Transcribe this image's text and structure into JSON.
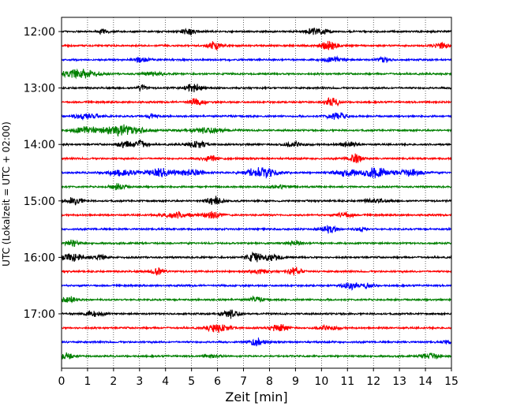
{
  "chart_data": {
    "type": "line",
    "title": "",
    "xlabel": "Zeit  [min]",
    "ylabel": "UTC (Lokalzeit = UTC + 02:00)",
    "xlim": [
      0,
      15
    ],
    "x_ticks": [
      0,
      1,
      2,
      3,
      4,
      5,
      6,
      7,
      8,
      9,
      10,
      11,
      12,
      13,
      14,
      15
    ],
    "y_tick_labels": [
      "12:00",
      "13:00",
      "14:00",
      "15:00",
      "16:00",
      "17:00"
    ],
    "trace_minutes": 15,
    "grid": "vertical dotted at each minute",
    "colors": [
      "#000000",
      "#ff0000",
      "#0000ff",
      "#008000"
    ],
    "traces": [
      {
        "start": "12:00",
        "color": "#000000",
        "events": [
          {
            "t": 1.6,
            "a": 0.55,
            "w": 0.12
          },
          {
            "t": 4.9,
            "a": 0.6,
            "w": 0.2
          },
          {
            "t": 9.8,
            "a": 0.65,
            "w": 0.3
          }
        ]
      },
      {
        "start": "12:15",
        "color": "#ff0000",
        "events": [
          {
            "t": 5.9,
            "a": 0.85,
            "w": 0.18
          },
          {
            "t": 10.3,
            "a": 0.8,
            "w": 0.25
          },
          {
            "t": 14.6,
            "a": 0.55,
            "w": 0.2
          }
        ]
      },
      {
        "start": "12:30",
        "color": "#0000ff",
        "events": [
          {
            "t": 3.1,
            "a": 0.45,
            "w": 0.25
          },
          {
            "t": 10.5,
            "a": 0.45,
            "w": 0.3
          },
          {
            "t": 12.4,
            "a": 0.65,
            "w": 0.15
          }
        ]
      },
      {
        "start": "12:45",
        "color": "#008000",
        "events": [
          {
            "t": 0.7,
            "a": 0.95,
            "w": 0.45
          },
          {
            "t": 3.5,
            "a": 0.3,
            "w": 0.3
          }
        ]
      },
      {
        "start": "13:00",
        "color": "#000000",
        "events": [
          {
            "t": 3.1,
            "a": 0.8,
            "w": 0.12
          },
          {
            "t": 5.1,
            "a": 0.75,
            "w": 0.25
          }
        ]
      },
      {
        "start": "13:15",
        "color": "#ff0000",
        "events": [
          {
            "t": 5.2,
            "a": 0.6,
            "w": 0.22
          },
          {
            "t": 10.4,
            "a": 0.7,
            "w": 0.2
          }
        ]
      },
      {
        "start": "13:30",
        "color": "#0000ff",
        "events": [
          {
            "t": 1.0,
            "a": 0.55,
            "w": 0.4
          },
          {
            "t": 3.5,
            "a": 0.4,
            "w": 0.15
          },
          {
            "t": 10.6,
            "a": 0.7,
            "w": 0.25
          }
        ]
      },
      {
        "start": "13:45",
        "color": "#008000",
        "events": [
          {
            "t": 1.0,
            "a": 0.6,
            "w": 0.4
          },
          {
            "t": 2.4,
            "a": 0.95,
            "w": 0.55
          },
          {
            "t": 5.6,
            "a": 0.5,
            "w": 0.5
          }
        ]
      },
      {
        "start": "14:00",
        "color": "#000000",
        "events": [
          {
            "t": 2.4,
            "a": 0.55,
            "w": 0.2
          },
          {
            "t": 3.0,
            "a": 0.75,
            "w": 0.2
          },
          {
            "t": 5.2,
            "a": 0.6,
            "w": 0.25
          },
          {
            "t": 8.9,
            "a": 0.45,
            "w": 0.3
          },
          {
            "t": 11.0,
            "a": 0.5,
            "w": 0.25
          }
        ]
      },
      {
        "start": "14:15",
        "color": "#ff0000",
        "events": [
          {
            "t": 5.7,
            "a": 0.55,
            "w": 0.2
          },
          {
            "t": 11.3,
            "a": 0.8,
            "w": 0.2
          }
        ]
      },
      {
        "start": "14:30",
        "color": "#0000ff",
        "events": [
          {
            "t": 2.3,
            "a": 0.5,
            "w": 0.4
          },
          {
            "t": 3.8,
            "a": 0.75,
            "w": 0.35
          },
          {
            "t": 5.0,
            "a": 0.55,
            "w": 0.4
          },
          {
            "t": 7.7,
            "a": 0.9,
            "w": 0.45
          },
          {
            "t": 11.0,
            "a": 0.7,
            "w": 0.35
          },
          {
            "t": 12.1,
            "a": 0.95,
            "w": 0.3
          },
          {
            "t": 13.4,
            "a": 0.6,
            "w": 0.4
          }
        ]
      },
      {
        "start": "14:45",
        "color": "#008000",
        "events": [
          {
            "t": 2.2,
            "a": 0.65,
            "w": 0.2
          },
          {
            "t": 8.4,
            "a": 0.3,
            "w": 0.3
          }
        ]
      },
      {
        "start": "15:00",
        "color": "#000000",
        "events": [
          {
            "t": 0.5,
            "a": 0.7,
            "w": 0.2
          },
          {
            "t": 5.9,
            "a": 0.85,
            "w": 0.2
          },
          {
            "t": 12.1,
            "a": 0.3,
            "w": 0.3
          }
        ]
      },
      {
        "start": "15:15",
        "color": "#ff0000",
        "events": [
          {
            "t": 4.4,
            "a": 0.55,
            "w": 0.4
          },
          {
            "t": 5.8,
            "a": 0.6,
            "w": 0.25
          },
          {
            "t": 10.9,
            "a": 0.55,
            "w": 0.2
          }
        ]
      },
      {
        "start": "15:30",
        "color": "#0000ff",
        "events": [
          {
            "t": 10.3,
            "a": 0.75,
            "w": 0.2
          },
          {
            "t": 11.5,
            "a": 0.35,
            "w": 0.15
          }
        ]
      },
      {
        "start": "15:45",
        "color": "#008000",
        "events": [
          {
            "t": 0.4,
            "a": 0.5,
            "w": 0.2
          },
          {
            "t": 9.0,
            "a": 0.4,
            "w": 0.2
          }
        ]
      },
      {
        "start": "16:00",
        "color": "#000000",
        "events": [
          {
            "t": 0.4,
            "a": 0.75,
            "w": 0.3
          },
          {
            "t": 1.5,
            "a": 0.45,
            "w": 0.2
          },
          {
            "t": 7.4,
            "a": 0.8,
            "w": 0.2
          },
          {
            "t": 8.1,
            "a": 0.6,
            "w": 0.25
          }
        ]
      },
      {
        "start": "16:15",
        "color": "#ff0000",
        "events": [
          {
            "t": 3.7,
            "a": 0.8,
            "w": 0.2
          },
          {
            "t": 7.6,
            "a": 0.45,
            "w": 0.25
          },
          {
            "t": 9.0,
            "a": 0.7,
            "w": 0.2
          }
        ]
      },
      {
        "start": "16:30",
        "color": "#0000ff",
        "events": [
          {
            "t": 11.1,
            "a": 0.65,
            "w": 0.2
          },
          {
            "t": 11.8,
            "a": 0.45,
            "w": 0.15
          }
        ]
      },
      {
        "start": "16:45",
        "color": "#008000",
        "events": [
          {
            "t": 0.3,
            "a": 0.6,
            "w": 0.2
          },
          {
            "t": 7.5,
            "a": 0.45,
            "w": 0.2
          }
        ]
      },
      {
        "start": "17:00",
        "color": "#000000",
        "events": [
          {
            "t": 1.2,
            "a": 0.5,
            "w": 0.3
          },
          {
            "t": 6.5,
            "a": 0.75,
            "w": 0.25
          }
        ]
      },
      {
        "start": "17:15",
        "color": "#ff0000",
        "events": [
          {
            "t": 6.0,
            "a": 0.75,
            "w": 0.3
          },
          {
            "t": 8.4,
            "a": 0.65,
            "w": 0.25
          },
          {
            "t": 10.2,
            "a": 0.4,
            "w": 0.3
          }
        ]
      },
      {
        "start": "17:30",
        "color": "#0000ff",
        "events": [
          {
            "t": 7.5,
            "a": 0.65,
            "w": 0.2
          },
          {
            "t": 14.8,
            "a": 0.45,
            "w": 0.1
          }
        ]
      },
      {
        "start": "17:45",
        "color": "#008000",
        "events": [
          {
            "t": 0.2,
            "a": 0.6,
            "w": 0.2
          },
          {
            "t": 5.8,
            "a": 0.3,
            "w": 0.2
          },
          {
            "t": 14.2,
            "a": 0.6,
            "w": 0.25
          }
        ]
      }
    ]
  }
}
